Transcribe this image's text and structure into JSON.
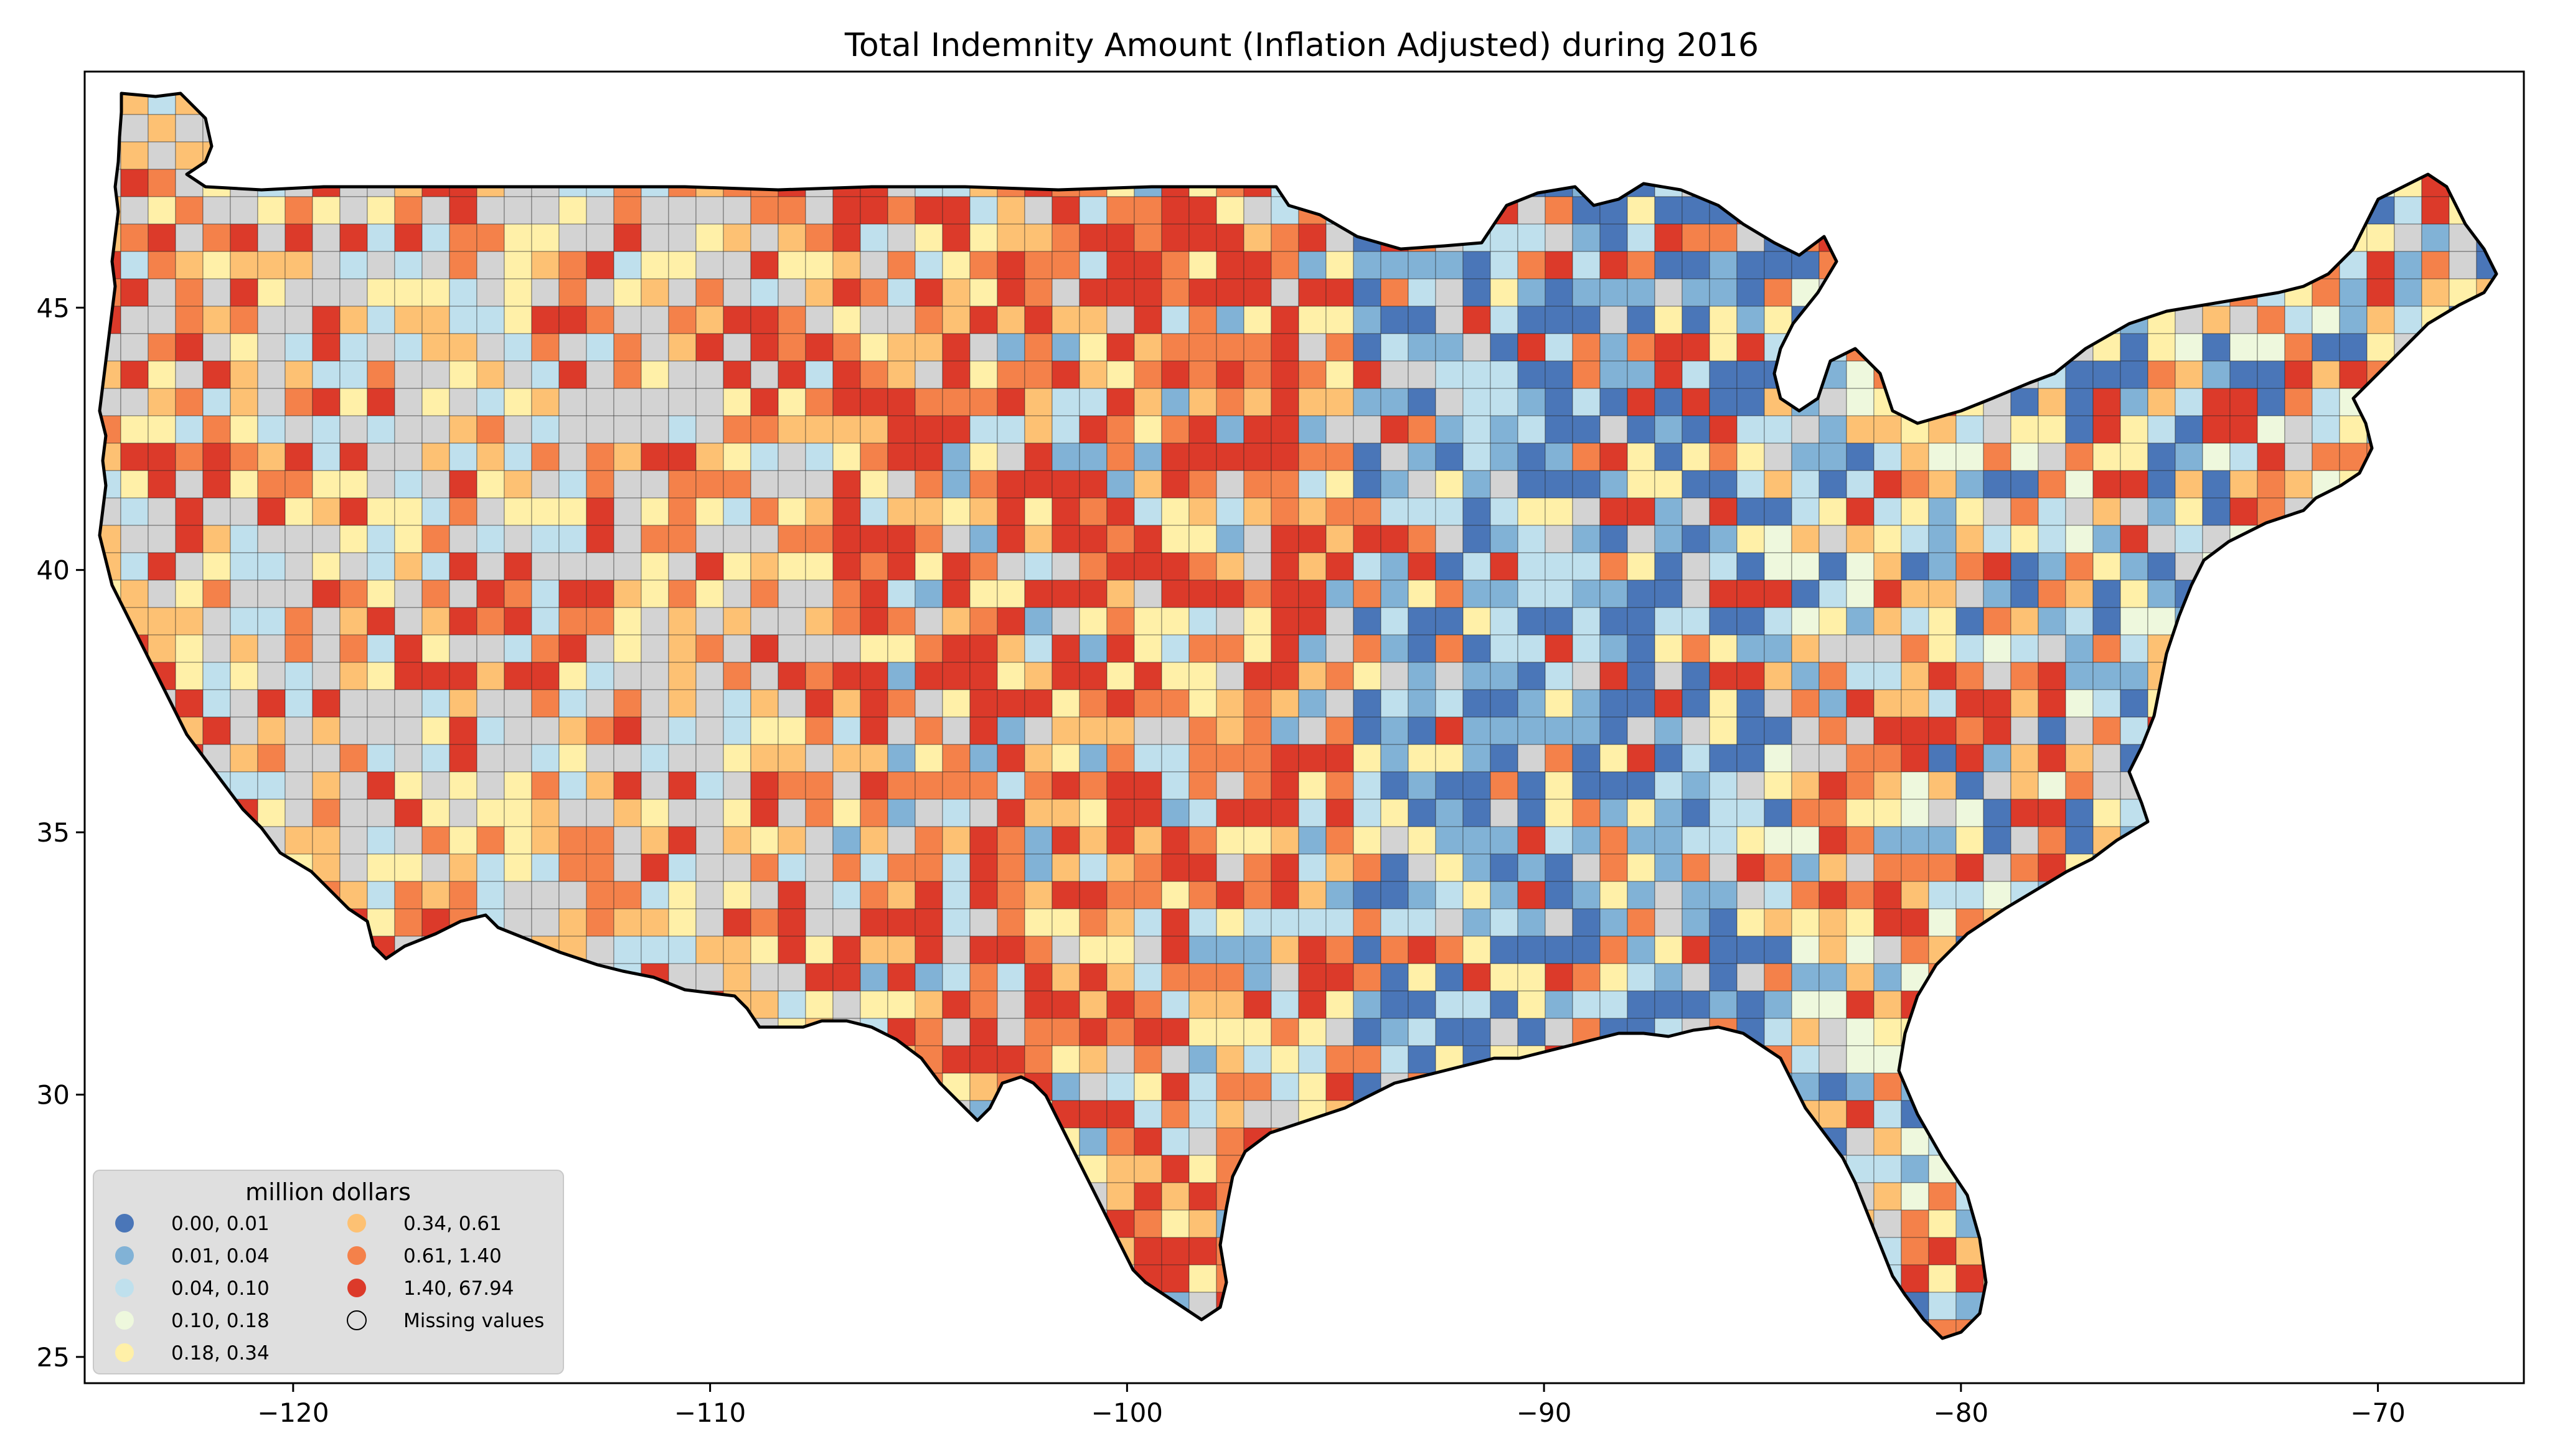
{
  "title": "Total Indemnity Amount  (Inflation Adjusted) during 2016",
  "chart_data": {
    "type": "choropleth",
    "title": "Total Indemnity Amount  (Inflation Adjusted) during 2016",
    "xlim": [
      -125,
      -66.5
    ],
    "ylim": [
      24.5,
      49.5
    ],
    "x_ticks": [
      -120,
      -110,
      -100,
      -90,
      -80,
      -70
    ],
    "x_tick_labels": [
      "−120",
      "−110",
      "−100",
      "−90",
      "−80",
      "−70"
    ],
    "y_ticks": [
      25,
      30,
      35,
      40,
      45
    ],
    "y_tick_labels": [
      "25",
      "30",
      "35",
      "40",
      "45"
    ],
    "legend": {
      "title": "million dollars",
      "placement": "lower-left",
      "entries": [
        {
          "label": "0.00,  0.01",
          "color": "#4a76b8"
        },
        {
          "label": "0.01,  0.04",
          "color": "#81b2d6"
        },
        {
          "label": "0.04,  0.10",
          "color": "#bfe0ed"
        },
        {
          "label": "0.10,  0.18",
          "color": "#eef8dd"
        },
        {
          "label": "0.18,  0.34",
          "color": "#fff0a8"
        },
        {
          "label": "0.34,  0.61",
          "color": "#fdc173"
        },
        {
          "label": "0.61,  1.40",
          "color": "#f4814a"
        },
        {
          "label": "1.40, 67.94",
          "color": "#dc3a2a"
        },
        {
          "label": "Missing values",
          "color": "#d3d3d3"
        }
      ]
    }
  }
}
